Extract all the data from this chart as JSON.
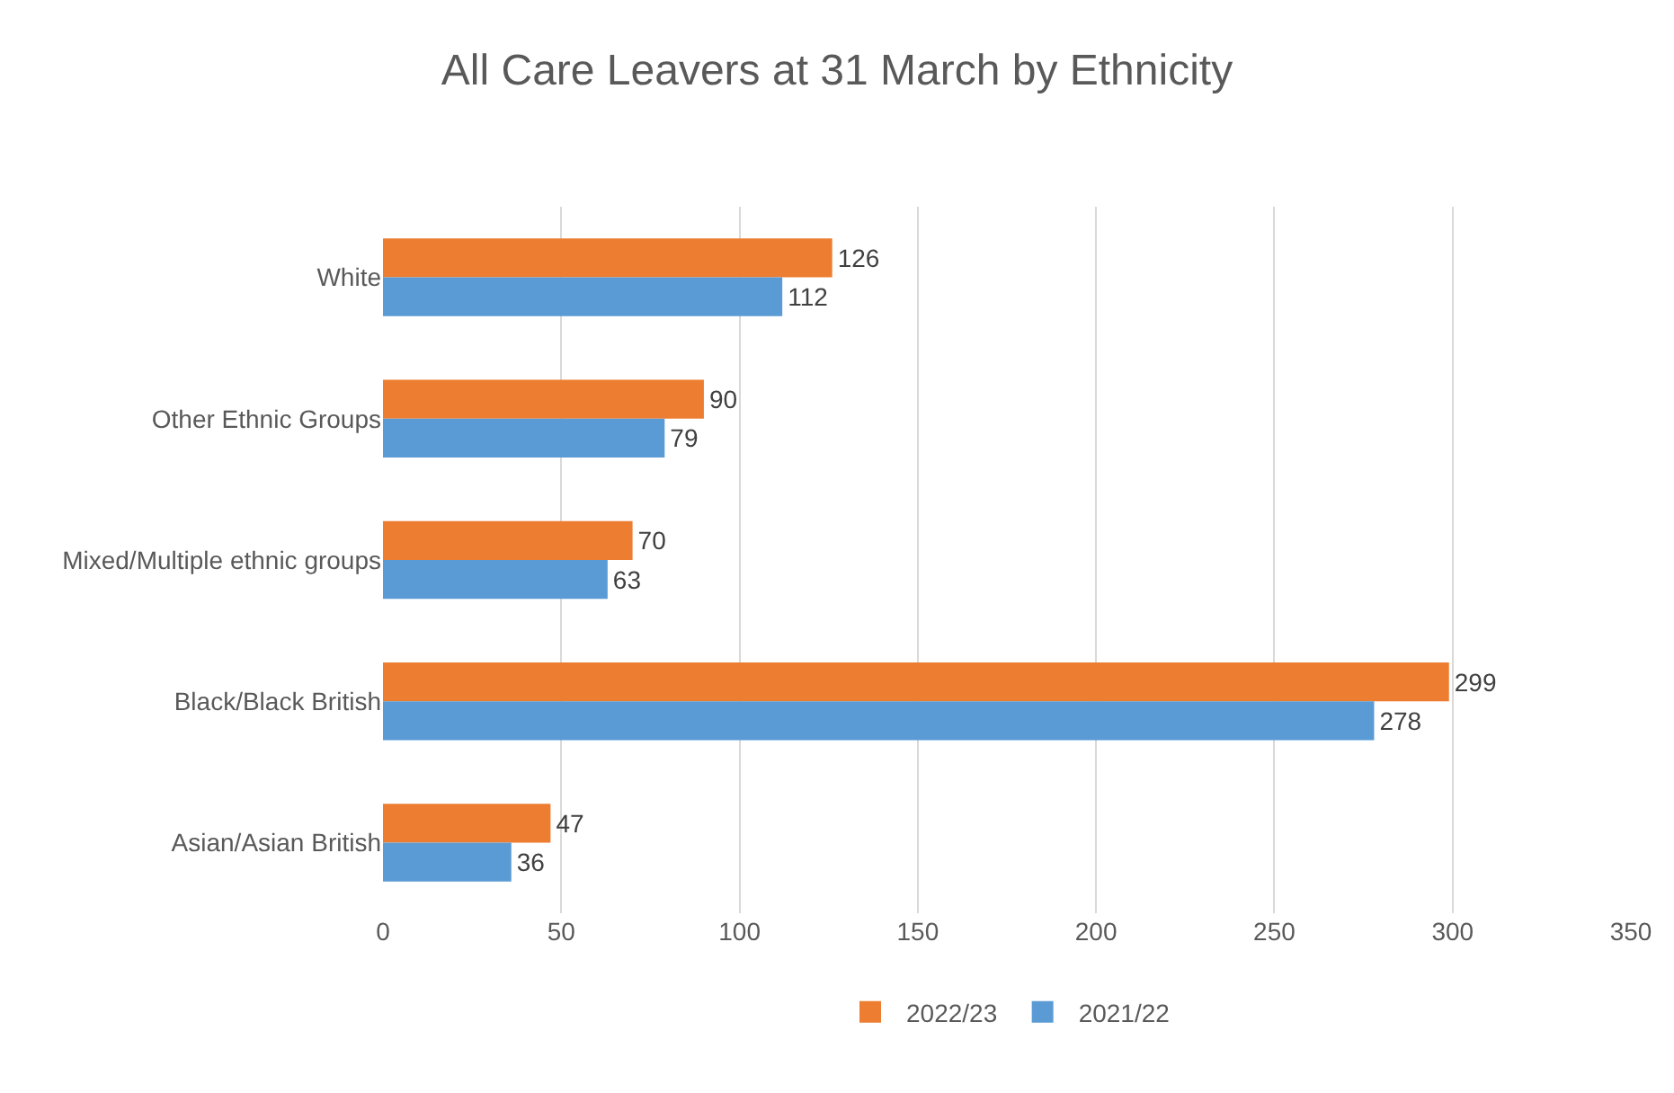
{
  "chart_data": {
    "type": "bar",
    "orientation": "horizontal",
    "title": "All Care Leavers at 31 March by Ethnicity",
    "categories": [
      "White",
      "Other Ethnic Groups",
      "Mixed/Multiple ethnic groups",
      "Black/Black British",
      "Asian/Asian British"
    ],
    "series": [
      {
        "name": "2022/23",
        "color": "#ed7d31",
        "values": [
          126,
          90,
          70,
          299,
          47
        ]
      },
      {
        "name": "2021/22",
        "color": "#5b9bd5",
        "values": [
          112,
          79,
          63,
          278,
          36
        ]
      }
    ],
    "xlim": [
      0,
      350
    ],
    "xticks": [
      0,
      50,
      100,
      150,
      200,
      250,
      300,
      350
    ],
    "grid": "x",
    "legend": "bottom",
    "data_labels": true
  }
}
